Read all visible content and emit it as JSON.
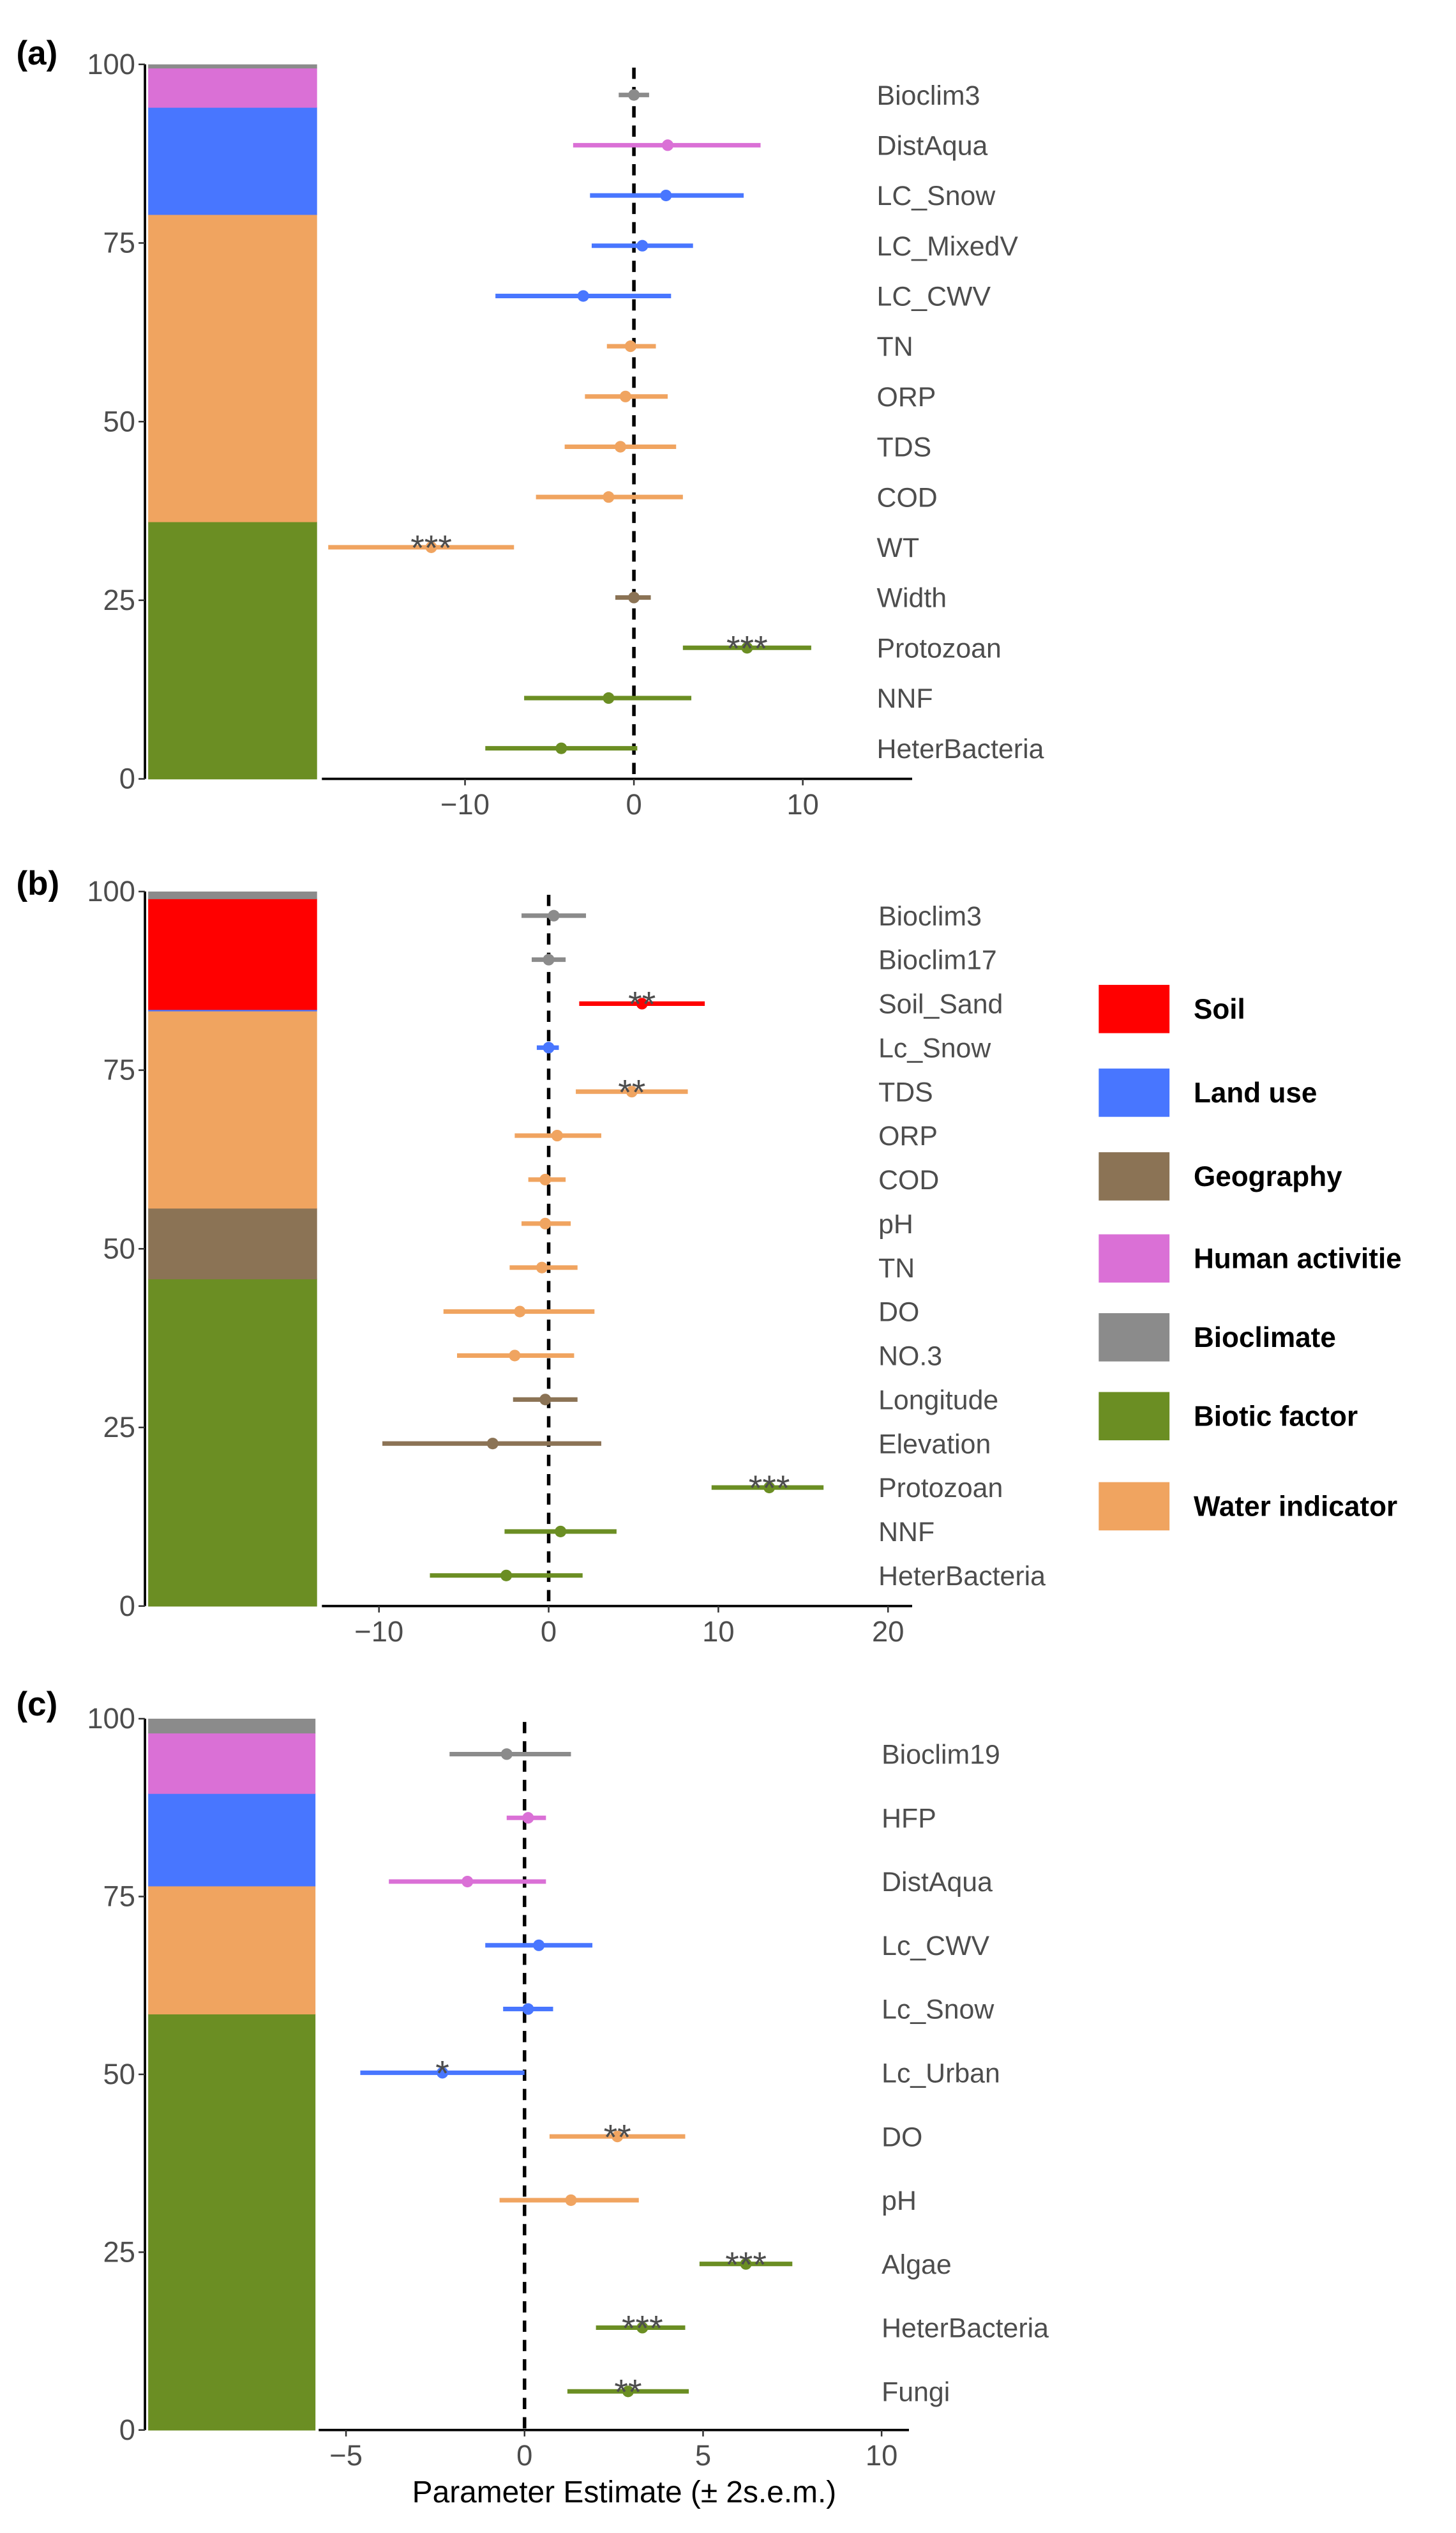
{
  "colors": {
    "Soil": "#FF0000",
    "Land use": "#4876FF",
    "Geography": "#8B7355",
    "Human activitie": "#DA70D6",
    "Bioclimate": "#8B8B8B",
    "Biotic factor": "#6B8E23",
    "Water indicator": "#F0A460"
  },
  "legend": [
    {
      "label": "Soil",
      "color": "#FF0000"
    },
    {
      "label": "Land use",
      "color": "#4876FF"
    },
    {
      "label": "Geography",
      "color": "#8B7355"
    },
    {
      "label": "Human activitie",
      "color": "#DA70D6"
    },
    {
      "label": "Bioclimate",
      "color": "#8B8B8B"
    },
    {
      "label": "Biotic factor",
      "color": "#6B8E23"
    },
    {
      "label": "Water indicator",
      "color": "#F0A460"
    }
  ],
  "chart_data": [
    {
      "type": "forest",
      "panel_label": "(a)",
      "xlabel": "",
      "stack_yticks": [
        "0",
        "25",
        "50",
        "75",
        "100"
      ],
      "stack": [
        {
          "group": "Biotic factor",
          "value": 36
        },
        {
          "group": "Water indicator",
          "value": 43
        },
        {
          "group": "Land use",
          "value": 15
        },
        {
          "group": "Human activitie",
          "value": 5.5
        },
        {
          "group": "Bioclimate",
          "value": 0.5
        }
      ],
      "xlim": [
        -19.5,
        16
      ],
      "xticks": [
        -10,
        0,
        10
      ],
      "xtick_labels": [
        "−10",
        "0",
        "10"
      ],
      "rows": [
        {
          "label": "Bioclim3",
          "group": "Bioclimate",
          "est": 0,
          "lo": -0.9,
          "hi": 0.9,
          "sig": ""
        },
        {
          "label": "DistAqua",
          "group": "Human activitie",
          "est": 2,
          "lo": -3.6,
          "hi": 7.5,
          "sig": ""
        },
        {
          "label": "LC_Snow",
          "group": "Land use",
          "est": 1.9,
          "lo": -2.6,
          "hi": 6.5,
          "sig": ""
        },
        {
          "label": "LC_MixedV",
          "group": "Land use",
          "est": 0.5,
          "lo": -2.5,
          "hi": 3.5,
          "sig": ""
        },
        {
          "label": "LC_CWV",
          "group": "Land use",
          "est": -3,
          "lo": -8.2,
          "hi": 2.2,
          "sig": ""
        },
        {
          "label": "TN",
          "group": "Water indicator",
          "est": -0.2,
          "lo": -1.6,
          "hi": 1.3,
          "sig": ""
        },
        {
          "label": "ORP",
          "group": "Water indicator",
          "est": -0.5,
          "lo": -2.9,
          "hi": 2,
          "sig": ""
        },
        {
          "label": "TDS",
          "group": "Water indicator",
          "est": -0.8,
          "lo": -4.1,
          "hi": 2.5,
          "sig": ""
        },
        {
          "label": "COD",
          "group": "Water indicator",
          "est": -1.5,
          "lo": -5.8,
          "hi": 2.9,
          "sig": ""
        },
        {
          "label": "WT",
          "group": "Water indicator",
          "est": -12,
          "lo": -18.1,
          "hi": -7.1,
          "sig": "***"
        },
        {
          "label": "Width",
          "group": "Geography",
          "est": 0,
          "lo": -1.1,
          "hi": 1,
          "sig": ""
        },
        {
          "label": "Protozoan",
          "group": "Biotic factor",
          "est": 6.7,
          "lo": 2.9,
          "hi": 10.5,
          "sig": "***"
        },
        {
          "label": "NNF",
          "group": "Biotic factor",
          "est": -1.5,
          "lo": -6.5,
          "hi": 3.4,
          "sig": ""
        },
        {
          "label": "HeterBacteria",
          "group": "Biotic factor",
          "est": -4.3,
          "lo": -8.8,
          "hi": 0.2,
          "sig": ""
        }
      ]
    },
    {
      "type": "forest",
      "panel_label": "(b)",
      "xlabel": "",
      "stack_yticks": [
        "0",
        "25",
        "50",
        "75",
        "100"
      ],
      "stack": [
        {
          "group": "Biotic factor",
          "value": 45.8
        },
        {
          "group": "Geography",
          "value": 9.9
        },
        {
          "group": "Water indicator",
          "value": 27.6
        },
        {
          "group": "Land use",
          "value": 0.2
        },
        {
          "group": "Soil",
          "value": 15.5
        },
        {
          "group": "Bioclimate",
          "value": 1
        }
      ],
      "xlim": [
        -13.5,
        21.3
      ],
      "xticks": [
        -10,
        0,
        10,
        20
      ],
      "xtick_labels": [
        "−10",
        "0",
        "10",
        "20"
      ],
      "rows": [
        {
          "label": "Bioclim3",
          "group": "Bioclimate",
          "est": 0.3,
          "lo": -1.6,
          "hi": 2.2,
          "sig": ""
        },
        {
          "label": "Bioclim17",
          "group": "Bioclimate",
          "est": 0,
          "lo": -1,
          "hi": 1,
          "sig": ""
        },
        {
          "label": "Soil_Sand",
          "group": "Soil",
          "est": 5.5,
          "lo": 1.8,
          "hi": 9.2,
          "sig": "**"
        },
        {
          "label": "Lc_Snow",
          "group": "Land use",
          "est": 0,
          "lo": -0.7,
          "hi": 0.6,
          "sig": ""
        },
        {
          "label": "TDS",
          "group": "Water indicator",
          "est": 4.9,
          "lo": 1.6,
          "hi": 8.2,
          "sig": "**"
        },
        {
          "label": "ORP",
          "group": "Water indicator",
          "est": 0.5,
          "lo": -2,
          "hi": 3.1,
          "sig": ""
        },
        {
          "label": "COD",
          "group": "Water indicator",
          "est": -0.2,
          "lo": -1.2,
          "hi": 1,
          "sig": ""
        },
        {
          "label": "pH",
          "group": "Water indicator",
          "est": -0.2,
          "lo": -1.6,
          "hi": 1.3,
          "sig": ""
        },
        {
          "label": "TN",
          "group": "Water indicator",
          "est": -0.4,
          "lo": -2.3,
          "hi": 1.7,
          "sig": ""
        },
        {
          "label": "DO",
          "group": "Water indicator",
          "est": -1.7,
          "lo": -6.2,
          "hi": 2.7,
          "sig": ""
        },
        {
          "label": "NO.3",
          "group": "Water indicator",
          "est": -2,
          "lo": -5.4,
          "hi": 1.5,
          "sig": ""
        },
        {
          "label": "Longitude",
          "group": "Geography",
          "est": -0.2,
          "lo": -2.1,
          "hi": 1.7,
          "sig": ""
        },
        {
          "label": "Elevation",
          "group": "Geography",
          "est": -3.3,
          "lo": -9.8,
          "hi": 3.1,
          "sig": ""
        },
        {
          "label": "Protozoan",
          "group": "Biotic factor",
          "est": 13,
          "lo": 9.6,
          "hi": 16.2,
          "sig": "***"
        },
        {
          "label": "NNF",
          "group": "Biotic factor",
          "est": 0.7,
          "lo": -2.6,
          "hi": 4,
          "sig": ""
        },
        {
          "label": "HeterBacteria",
          "group": "Biotic factor",
          "est": -2.5,
          "lo": -7,
          "hi": 2,
          "sig": ""
        }
      ]
    },
    {
      "type": "forest",
      "panel_label": "(c)",
      "xlabel": "Parameter Estimate (± 2s.e.m.)",
      "stack_yticks": [
        "0",
        "25",
        "50",
        "75",
        "100"
      ],
      "stack": [
        {
          "group": "Biotic factor",
          "value": 58.5
        },
        {
          "group": "Water indicator",
          "value": 18
        },
        {
          "group": "Land use",
          "value": 13
        },
        {
          "group": "Human activitie",
          "value": 8.5
        },
        {
          "group": "Bioclimate",
          "value": 2
        }
      ],
      "xlim": [
        -5.8,
        10.8
      ],
      "xticks": [
        -5,
        0,
        5,
        10
      ],
      "xtick_labels": [
        "−5",
        "0",
        "5",
        "10"
      ],
      "rows": [
        {
          "label": "Bioclim19",
          "group": "Bioclimate",
          "est": -0.5,
          "lo": -2.1,
          "hi": 1.3,
          "sig": ""
        },
        {
          "label": "HFP",
          "group": "Human activitie",
          "est": 0.1,
          "lo": -0.5,
          "hi": 0.6,
          "sig": ""
        },
        {
          "label": "DistAqua",
          "group": "Human activitie",
          "est": -1.6,
          "lo": -3.8,
          "hi": 0.6,
          "sig": ""
        },
        {
          "label": "Lc_CWV",
          "group": "Land use",
          "est": 0.4,
          "lo": -1.1,
          "hi": 1.9,
          "sig": ""
        },
        {
          "label": "Lc_Snow",
          "group": "Land use",
          "est": 0.1,
          "lo": -0.6,
          "hi": 0.8,
          "sig": ""
        },
        {
          "label": "Lc_Urban",
          "group": "Land use",
          "est": -2.3,
          "lo": -4.6,
          "hi": 0,
          "sig": "*"
        },
        {
          "label": "DO",
          "group": "Water indicator",
          "est": 2.6,
          "lo": 0.7,
          "hi": 4.5,
          "sig": "**"
        },
        {
          "label": "pH",
          "group": "Water indicator",
          "est": 1.3,
          "lo": -0.7,
          "hi": 3.2,
          "sig": ""
        },
        {
          "label": "Algae",
          "group": "Biotic factor",
          "est": 6.2,
          "lo": 4.9,
          "hi": 7.5,
          "sig": "***"
        },
        {
          "label": "HeterBacteria",
          "group": "Biotic factor",
          "est": 3.3,
          "lo": 2,
          "hi": 4.5,
          "sig": "***"
        },
        {
          "label": "Fungi",
          "group": "Biotic factor",
          "est": 2.9,
          "lo": 1.2,
          "hi": 4.6,
          "sig": "**"
        }
      ]
    }
  ]
}
